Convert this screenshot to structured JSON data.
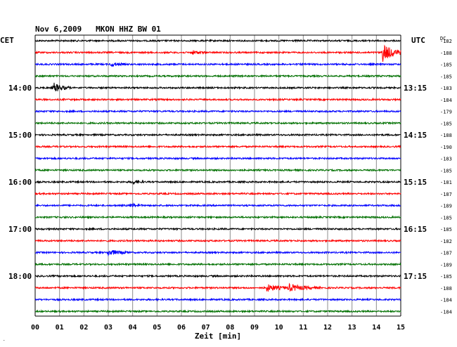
{
  "header": {
    "title": "Nov 6,2009   MKON HHZ BW 01",
    "left_zone": "CET",
    "right_zone": "UTC",
    "dc_label": "DC"
  },
  "chart_data": {
    "type": "line",
    "title": "Nov 6,2009   MKON HHZ BW 01",
    "xlabel": "Zeit [min]",
    "xlim": [
      0,
      15
    ],
    "x_ticks": [
      "00",
      "01",
      "02",
      "03",
      "04",
      "05",
      "06",
      "07",
      "08",
      "09",
      "10",
      "11",
      "12",
      "13",
      "14",
      "15"
    ],
    "trace_count": 24,
    "trace_colors": [
      "#000000",
      "#ff0000",
      "#0000ff",
      "#007000"
    ],
    "left_time_labels": [
      {
        "trace": 4,
        "label": "14:00"
      },
      {
        "trace": 8,
        "label": "15:00"
      },
      {
        "trace": 12,
        "label": "16:00"
      },
      {
        "trace": 16,
        "label": "17:00"
      },
      {
        "trace": 20,
        "label": "18:00"
      }
    ],
    "right_time_labels": [
      {
        "trace": 4,
        "label": "13:15"
      },
      {
        "trace": 8,
        "label": "14:15"
      },
      {
        "trace": 12,
        "label": "15:15"
      },
      {
        "trace": 16,
        "label": "16:15"
      },
      {
        "trace": 20,
        "label": "17:15"
      }
    ],
    "dc_offsets": [
      "-182",
      "-188",
      "-185",
      "-185",
      "-183",
      "-184",
      "-179",
      "-185",
      "-188",
      "-190",
      "-183",
      "-185",
      "-181",
      "-187",
      "-189",
      "-185",
      "-185",
      "-182",
      "-187",
      "-189",
      "-185",
      "-188",
      "-184",
      "-184"
    ],
    "events": [
      {
        "trace": 1,
        "minute": 6.4,
        "amplitude": 3,
        "duration": 0.6
      },
      {
        "trace": 1,
        "minute": 14.25,
        "amplitude": 13,
        "duration": 0.9
      },
      {
        "trace": 2,
        "minute": 3.1,
        "amplitude": 3,
        "duration": 0.6
      },
      {
        "trace": 4,
        "minute": 0.75,
        "amplitude": 7,
        "duration": 0.7
      },
      {
        "trace": 12,
        "minute": 4.0,
        "amplitude": 3,
        "duration": 0.5
      },
      {
        "trace": 14,
        "minute": 3.9,
        "amplitude": 3,
        "duration": 0.5
      },
      {
        "trace": 18,
        "minute": 3.0,
        "amplitude": 4,
        "duration": 0.9
      },
      {
        "trace": 21,
        "minute": 9.5,
        "amplitude": 5,
        "duration": 0.9
      },
      {
        "trace": 21,
        "minute": 10.4,
        "amplitude": 5,
        "duration": 1.3
      }
    ]
  }
}
